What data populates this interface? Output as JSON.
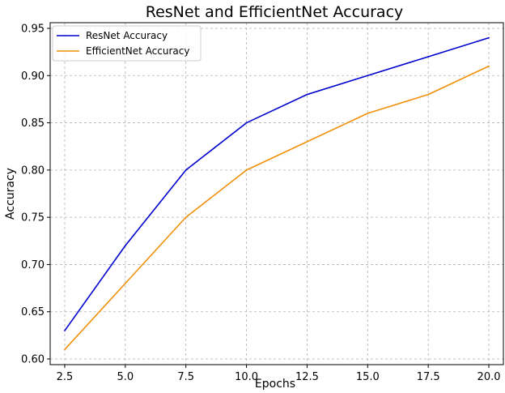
{
  "chart_data": {
    "type": "line",
    "title": "ResNet and EfficientNet Accuracy",
    "xlabel": "Epochs",
    "ylabel": "Accuracy",
    "x": [
      2.5,
      5.0,
      7.5,
      10.0,
      12.5,
      15.0,
      17.5,
      20.0
    ],
    "xticks": [
      "2.5",
      "5.0",
      "7.5",
      "10.0",
      "12.5",
      "15.0",
      "17.5",
      "20.0"
    ],
    "yticks": [
      "0.60",
      "0.65",
      "0.70",
      "0.75",
      "0.80",
      "0.85",
      "0.90",
      "0.95"
    ],
    "xlim": [
      1.9,
      20.6
    ],
    "ylim": [
      0.594,
      0.956
    ],
    "grid": true,
    "legend_position": "top-left",
    "series": [
      {
        "name": "ResNet Accuracy",
        "color": "#0000cc",
        "values": [
          0.63,
          0.72,
          0.8,
          0.85,
          0.88,
          0.9,
          0.92,
          0.94
        ]
      },
      {
        "name": "EfficientNet Accuracy",
        "color": "#f0900a",
        "values": [
          0.61,
          0.68,
          0.75,
          0.8,
          0.83,
          0.86,
          0.88,
          0.91
        ]
      }
    ]
  }
}
